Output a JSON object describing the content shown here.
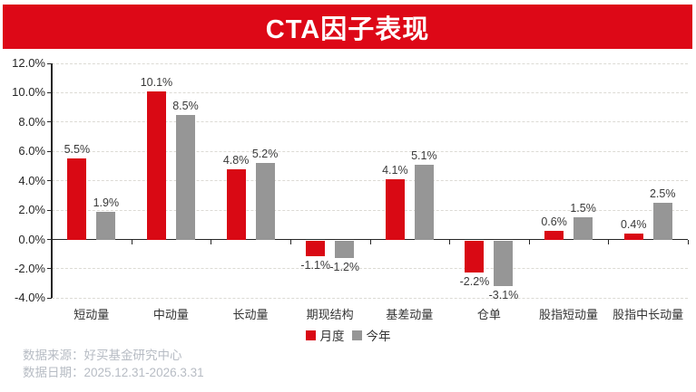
{
  "header": {
    "title": "CTA因子表现"
  },
  "colors": {
    "banner_red": "#dd0817",
    "bar_red": "#d90914",
    "bar_gray": "#969696",
    "axis": "#262626",
    "grid": "#dcdad4",
    "footer_text": "#b7bcc4"
  },
  "chart_data": {
    "type": "bar",
    "title": "CTA因子表现",
    "categories": [
      "短动量",
      "中动量",
      "长动量",
      "期现结构",
      "基差动量",
      "仓单",
      "股指短动量",
      "股指中长动量"
    ],
    "series": [
      {
        "name": "月度",
        "color": "#d90914",
        "values": [
          5.5,
          10.1,
          4.8,
          -1.1,
          4.1,
          -2.2,
          0.6,
          0.4
        ]
      },
      {
        "name": "今年",
        "color": "#969696",
        "values": [
          1.9,
          8.5,
          5.2,
          -1.2,
          5.1,
          -3.1,
          1.5,
          2.5
        ]
      }
    ],
    "ylim": [
      -4,
      12
    ],
    "ytick_step": 2,
    "yticks": [
      {
        "v": 12,
        "label": "12.0%"
      },
      {
        "v": 10,
        "label": "10.0%"
      },
      {
        "v": 8,
        "label": "8.0%"
      },
      {
        "v": 6,
        "label": "6.0%"
      },
      {
        "v": 4,
        "label": "4.0%"
      },
      {
        "v": 2,
        "label": "2.0%"
      },
      {
        "v": 0,
        "label": "0.0%"
      },
      {
        "v": -2,
        "label": "-2.0%"
      },
      {
        "v": -4,
        "label": "-4.0%"
      }
    ],
    "grid": "horizontal-dashed",
    "legend_position": "bottom",
    "data_labels": true,
    "data_label_suffix": "%"
  },
  "footer": {
    "source": "数据来源：好买基金研究中心",
    "date": "数据日期：2025.12.31-2026.3.31"
  }
}
